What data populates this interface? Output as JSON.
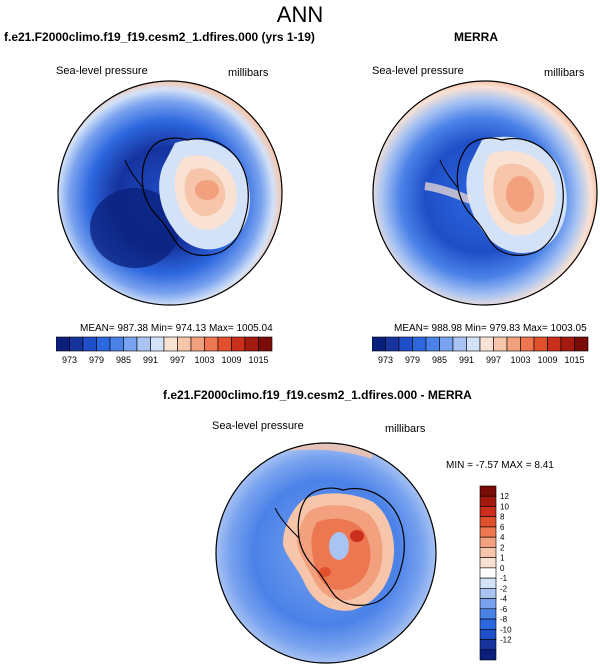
{
  "figure": {
    "title": "ANN"
  },
  "panels": [
    {
      "title": "f.e21.F2000climo.f19_f19.cesm2_1.dfires.000 (yrs 1-19)",
      "left_label": "Sea-level pressure",
      "right_label": "millibars",
      "stats": "MEAN= 987.38  Min= 974.13  Max= 1005.04",
      "colorbar": {
        "colors": [
          "#0a1f7a",
          "#16339e",
          "#1f4fc8",
          "#2d67df",
          "#4b82e8",
          "#7aa3ef",
          "#a9c4f3",
          "#d4e2f8",
          "#f9e2d4",
          "#f6c5aa",
          "#f2a07d",
          "#ec7751",
          "#e2512e",
          "#c92f1b",
          "#a41a10",
          "#7a0c08"
        ],
        "tick_labels": [
          "973",
          "979",
          "985",
          "991",
          "997",
          "1003",
          "1009",
          "1015"
        ]
      }
    },
    {
      "title": "MERRA",
      "left_label": "Sea-level pressure",
      "right_label": "millibars",
      "stats": "MEAN= 988.98  Min= 979.83  Max= 1003.05",
      "colorbar": {
        "colors": [
          "#0a1f7a",
          "#16339e",
          "#1f4fc8",
          "#2d67df",
          "#4b82e8",
          "#7aa3ef",
          "#a9c4f3",
          "#d4e2f8",
          "#f9e2d4",
          "#f6c5aa",
          "#f2a07d",
          "#ec7751",
          "#e2512e",
          "#c92f1b",
          "#a41a10",
          "#7a0c08"
        ],
        "tick_labels": [
          "973",
          "979",
          "985",
          "991",
          "997",
          "1003",
          "1009",
          "1015"
        ]
      }
    },
    {
      "title": "f.e21.F2000climo.f19_f19.cesm2_1.dfires.000 - MERRA",
      "left_label": "Sea-level pressure",
      "right_label": "millibars",
      "stats": "MIN = -7.57  MAX =  8.41",
      "colorbar": {
        "colors": [
          "#7a0c08",
          "#a41a10",
          "#c92f1b",
          "#e2512e",
          "#ec7751",
          "#f2a07d",
          "#f6c5aa",
          "#f9e2d4",
          "#ffffff",
          "#d4e2f8",
          "#a9c4f3",
          "#7aa3ef",
          "#4b82e8",
          "#2d67df",
          "#1f4fc8",
          "#16339e",
          "#0a1f7a"
        ],
        "tick_labels": [
          "12",
          "10",
          "8",
          "6",
          "4",
          "2",
          "1",
          "0",
          "-1",
          "-2",
          "-4",
          "-6",
          "-8",
          "-10",
          "-12"
        ]
      }
    }
  ]
}
